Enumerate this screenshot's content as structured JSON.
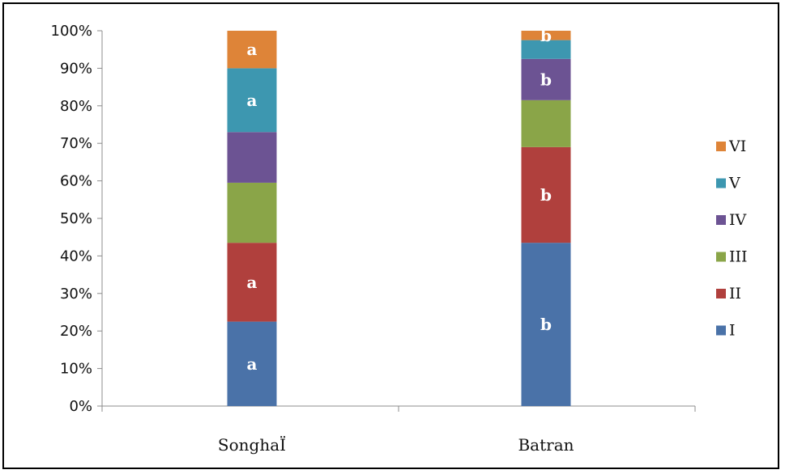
{
  "chart_data": {
    "type": "bar",
    "stacked": true,
    "percent": true,
    "categories": [
      "SonghaÏ",
      "Batran"
    ],
    "ylim": [
      0,
      100
    ],
    "yticks": [
      "0%",
      "10%",
      "20%",
      "30%",
      "40%",
      "50%",
      "60%",
      "70%",
      "80%",
      "90%",
      "100%"
    ],
    "ytick_values": [
      0,
      10,
      20,
      30,
      40,
      50,
      60,
      70,
      80,
      90,
      100
    ],
    "legend_position": "right",
    "series": [
      {
        "name": "I",
        "color": "#4a72a8",
        "values": [
          22.5,
          43.5
        ],
        "labels": [
          "a",
          "b"
        ]
      },
      {
        "name": "II",
        "color": "#b0403d",
        "values": [
          21,
          25.5
        ],
        "labels": [
          "a",
          "b"
        ]
      },
      {
        "name": "III",
        "color": "#8aa548",
        "values": [
          16,
          12.5
        ],
        "labels": [
          "",
          ""
        ]
      },
      {
        "name": "IV",
        "color": "#6c5393",
        "values": [
          13.5,
          11
        ],
        "labels": [
          "",
          "b"
        ]
      },
      {
        "name": "V",
        "color": "#3d97b0",
        "values": [
          17,
          5
        ],
        "labels": [
          "a",
          ""
        ]
      },
      {
        "name": "VI",
        "color": "#de8438",
        "values": [
          10,
          2.5
        ],
        "labels": [
          "a",
          "b"
        ]
      }
    ]
  }
}
